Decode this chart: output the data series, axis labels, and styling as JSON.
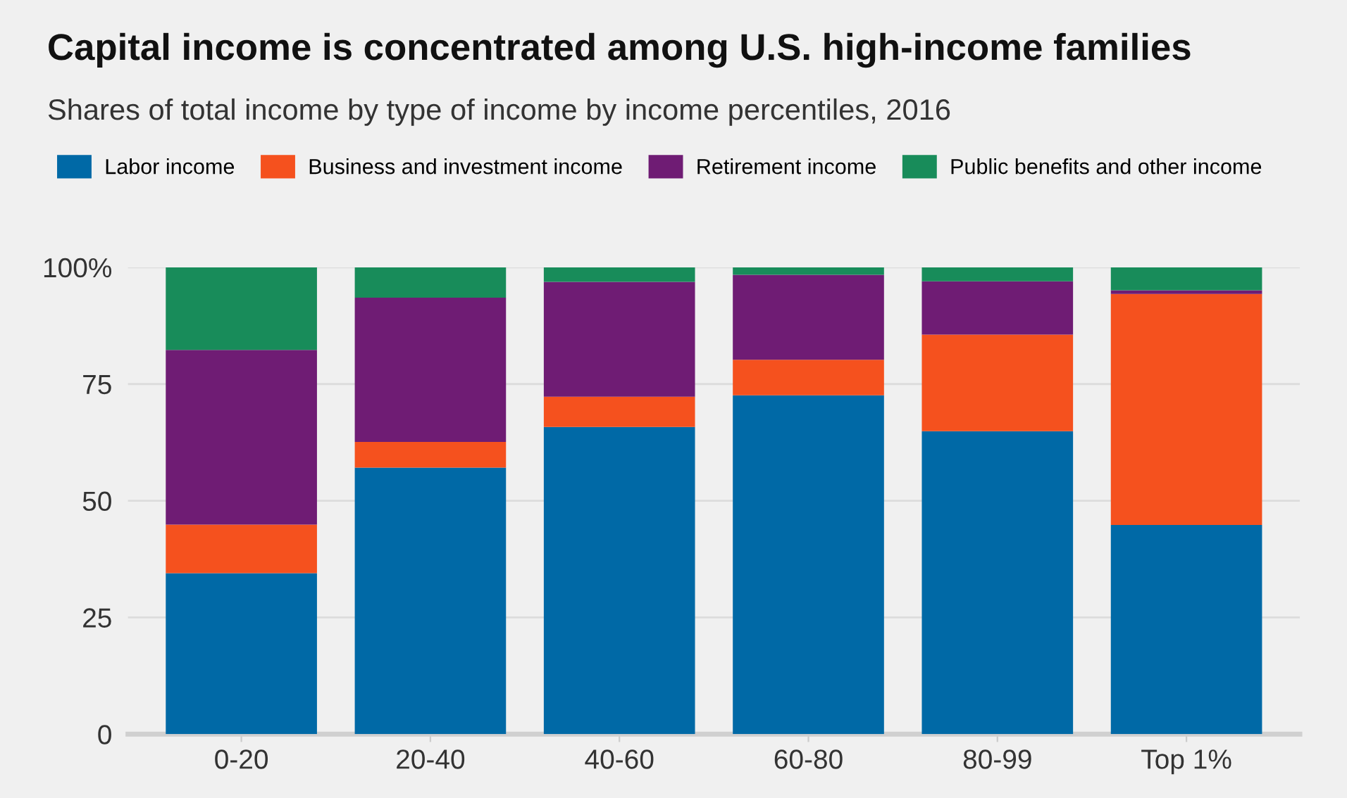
{
  "chart_data": {
    "type": "bar",
    "stacked": true,
    "title": "Capital income is concentrated among U.S. high-income families",
    "subtitle": "Shares of total income by type of income by income percentiles, 2016",
    "categories": [
      "0-20",
      "20-40",
      "40-60",
      "60-80",
      "80-99",
      "Top 1%"
    ],
    "series": [
      {
        "name": "Labor income",
        "color": "#0069a6",
        "values": [
          34.5,
          57.1,
          65.8,
          72.6,
          64.9,
          44.8
        ]
      },
      {
        "name": "Business and investment income",
        "color": "#f5511e",
        "values": [
          10.4,
          5.5,
          6.5,
          7.6,
          20.7,
          49.5
        ]
      },
      {
        "name": "Retirement income",
        "color": "#6f1c74",
        "values": [
          37.4,
          30.9,
          24.6,
          18.2,
          11.4,
          0.8
        ]
      },
      {
        "name": "Public benefits and other income",
        "color": "#188c5a",
        "values": [
          17.7,
          6.5,
          3.1,
          1.6,
          3.0,
          4.9
        ]
      }
    ],
    "ylim": [
      0,
      100
    ],
    "yticks": [
      0,
      25,
      50,
      75,
      {
        "value": 100,
        "label": "100%"
      }
    ],
    "grid": "y",
    "legend": "top"
  }
}
